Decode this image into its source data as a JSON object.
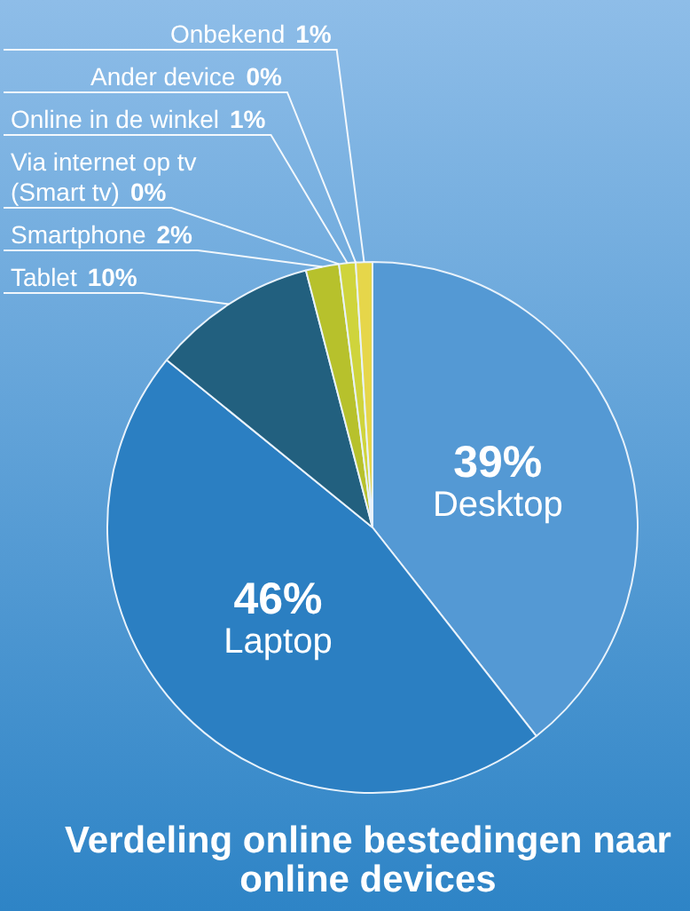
{
  "chart_data": {
    "type": "pie",
    "title": "Verdeling online bestedingen naar online devices",
    "categories": [
      "Desktop",
      "Laptop",
      "Tablet",
      "Smartphone",
      "Via internet op tv (Smart tv)",
      "Online in de winkel",
      "Ander device",
      "Onbekend"
    ],
    "values": [
      39,
      46,
      10,
      2,
      0,
      1,
      0,
      1
    ],
    "value_labels": [
      "39%",
      "46%",
      "10%",
      "2%",
      "0%",
      "1%",
      "0%",
      "1%"
    ],
    "colors": [
      "#5499d4",
      "#2b7fc2",
      "#22607f",
      "#b7c12c",
      "#9fb23a",
      "#cfd43c",
      "#d8d84a",
      "#e6d64a"
    ],
    "legend": false
  }
}
